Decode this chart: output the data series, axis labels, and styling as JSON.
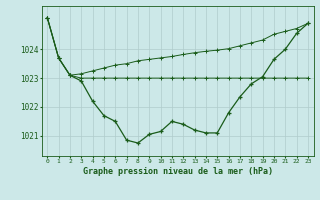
{
  "hours": [
    0,
    1,
    2,
    3,
    4,
    5,
    6,
    7,
    8,
    9,
    10,
    11,
    12,
    13,
    14,
    15,
    16,
    17,
    18,
    19,
    20,
    21,
    22,
    23
  ],
  "pressure_main": [
    1025.1,
    1023.7,
    1023.1,
    1022.9,
    1022.2,
    1021.7,
    1021.5,
    1020.85,
    1020.75,
    1021.05,
    1021.15,
    1021.5,
    1021.4,
    1021.2,
    1021.1,
    1021.1,
    1021.8,
    1022.35,
    1022.8,
    1023.05,
    1023.65,
    1024.0,
    1024.55,
    1024.9
  ],
  "pressure_max": [
    1025.1,
    1023.7,
    1023.1,
    1023.15,
    1023.25,
    1023.35,
    1023.45,
    1023.5,
    1023.6,
    1023.65,
    1023.7,
    1023.75,
    1023.82,
    1023.88,
    1023.93,
    1023.97,
    1024.02,
    1024.12,
    1024.22,
    1024.32,
    1024.52,
    1024.62,
    1024.72,
    1024.9
  ],
  "pressure_min": [
    1025.1,
    1023.7,
    1023.1,
    1023.0,
    1023.0,
    1023.0,
    1023.0,
    1023.0,
    1023.0,
    1023.0,
    1023.0,
    1023.0,
    1023.0,
    1023.0,
    1023.0,
    1023.0,
    1023.0,
    1023.0,
    1023.0,
    1023.0,
    1023.0,
    1023.0,
    1023.0,
    1023.0
  ],
  "line_color": "#1a5c1a",
  "bg_color": "#cce8e8",
  "grid_color": "#b0cccc",
  "ylabel_values": [
    1021,
    1022,
    1023,
    1024
  ],
  "ylim": [
    1020.3,
    1025.5
  ],
  "xlim": [
    -0.5,
    23.5
  ],
  "xlabel": "Graphe pression niveau de la mer (hPa)",
  "xlabel_fontsize": 6.0,
  "ytick_fontsize": 5.5,
  "xtick_fontsize": 4.5
}
